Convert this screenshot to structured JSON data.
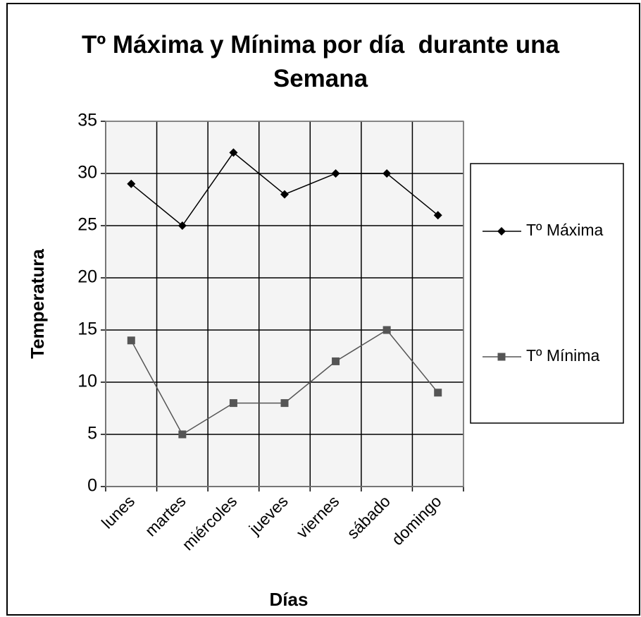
{
  "chart_data": {
    "type": "line",
    "title": "Tº Máxima y Mínima por día  durante una Semana",
    "x_label": "Días",
    "y_label": "Temperatura",
    "categories": [
      "lunes",
      "martes",
      "miércoles",
      "jueves",
      "viernes",
      "sábado",
      "domingo"
    ],
    "series": [
      {
        "name": "Tº Máxima",
        "color": "#000000",
        "marker": "diamond",
        "values": [
          29,
          25,
          32,
          28,
          30,
          30,
          26
        ]
      },
      {
        "name": "Tº Mínima",
        "color": "#555555",
        "marker": "square",
        "values": [
          14,
          5,
          8,
          8,
          12,
          15,
          9
        ]
      }
    ],
    "ylim": [
      0,
      35
    ],
    "yticks": [
      0,
      5,
      10,
      15,
      20,
      25,
      30,
      35
    ],
    "grid": true,
    "legend": "right"
  }
}
